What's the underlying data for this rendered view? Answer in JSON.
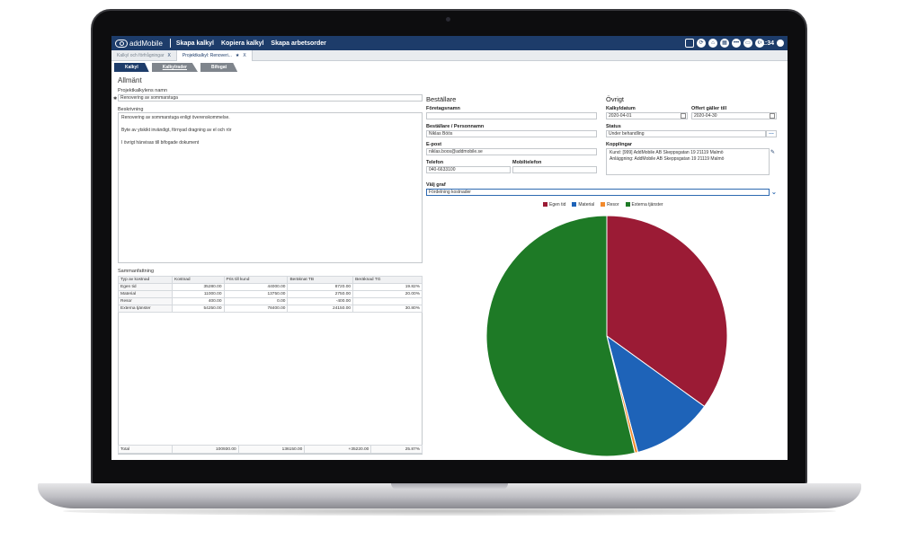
{
  "topbar": {
    "brand": "addMobile",
    "links": [
      "Skapa kalkyl",
      "Kopiera kalkyl",
      "Skapa arbetsorder"
    ],
    "clock": "11:34"
  },
  "window_tabs": [
    {
      "label": "Kalkyl och förfrågningar",
      "close": "X"
    },
    {
      "label": "Projektkalkyl: Renoveri...",
      "close": "X"
    }
  ],
  "sub_tabs": [
    "Kalkyl",
    "Kalkylrader",
    "Bifogat"
  ],
  "general": {
    "heading": "Allmänt",
    "name_label": "Projektkalkylens namn",
    "name_value": "Renovering av sommarstuga",
    "desc_label": "Beskrivning",
    "desc_lines": [
      "Renovering av sommarstuga enligt överenskommelse.",
      "",
      "Byte av ytskikt invändigt, förnyad dragning av el och rör",
      "",
      "I övrigt hänvisas till bifogade dokument"
    ]
  },
  "orderer": {
    "heading": "Beställare",
    "company_label": "Företagsnamn",
    "company_value": "",
    "person_label": "Beställare / Personnamn",
    "person_value": "Niklas Böös",
    "email_label": "E-post",
    "email_value": "niklas.boos@addmobile.se",
    "phone_label": "Telefon",
    "phone_value": "040-6633100",
    "mobile_label": "Mobiltelefon",
    "mobile_value": ""
  },
  "other": {
    "heading": "Övrigt",
    "date_label": "Kalkyldatum",
    "date_value": "2020-04-01",
    "valid_label": "Offert gäller till",
    "valid_value": "2020-04-30",
    "status_label": "Status",
    "status_value": "Under behandling",
    "links_label": "Kopplingar",
    "links_lines": [
      "Kund: [999] AddMobile AB Skeppsgatan 19 21119 Malmö",
      "Anläggning: AddMobile AB Skeppsgatan 19 21119 Malmö"
    ],
    "graph_label": "Välj graf",
    "graph_value": "Fördelning kostnader"
  },
  "summary": {
    "heading": "Sammanfattning",
    "columns": [
      "Typ av kostnad",
      "Kostnad",
      "Pris till kund",
      "Beräknat TB",
      "Beräknad TG"
    ],
    "rows": [
      [
        "Egen tid",
        "35280.00",
        "44000.00",
        "8720.00",
        "19.82%"
      ],
      [
        "Material",
        "11000.00",
        "13750.00",
        "2750.00",
        "20.00%"
      ],
      [
        "Resor",
        "400.00",
        "0.00",
        "-400.00",
        ""
      ],
      [
        "Externa tjänster",
        "54250.00",
        "78400.00",
        "24150.00",
        "30.80%"
      ]
    ],
    "total": [
      "Total",
      "100930.00",
      "136150.00",
      "+35220.00",
      "25.87%"
    ]
  },
  "chart_data": {
    "type": "pie",
    "categories": [
      "Egen tid",
      "Material",
      "Resor",
      "Externa tjänster"
    ],
    "values": [
      35280,
      11000,
      400,
      54250
    ],
    "colors": [
      "#9b1b35",
      "#1e63b8",
      "#f28a2c",
      "#1e7a26"
    ]
  },
  "icons": [
    "save-icon",
    "refresh-icon",
    "home-icon",
    "grid-icon",
    "more-icon",
    "window-icon",
    "settings-icon"
  ]
}
